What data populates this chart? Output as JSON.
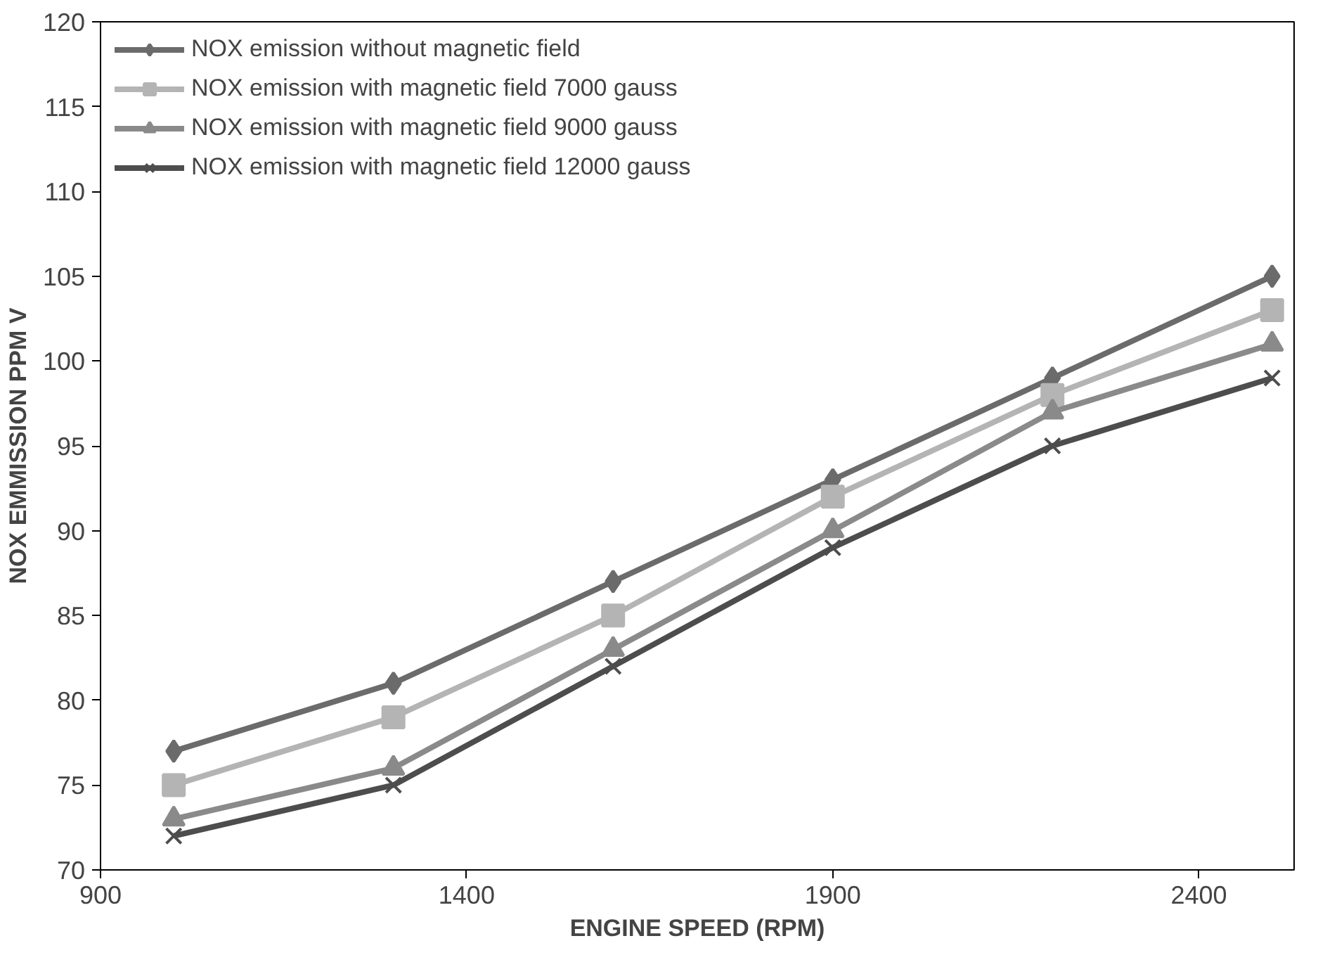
{
  "chart_data": {
    "type": "line",
    "xlabel": "ENGINE SPEED (RPM)",
    "ylabel": "NOX EMMISSION PPM V",
    "x": [
      1000,
      1300,
      1600,
      1900,
      2200,
      2500
    ],
    "xlim": [
      900,
      2530
    ],
    "xticks": [
      900,
      1400,
      1900,
      2400
    ],
    "ylim": [
      70,
      120
    ],
    "yticks": [
      70,
      75,
      80,
      85,
      90,
      95,
      100,
      105,
      110,
      115,
      120
    ],
    "grid": false,
    "legend": "top left",
    "line_style": "solid",
    "series": [
      {
        "name": "NOX emission without magnetic field",
        "color": "#6b6b6b",
        "marker": "diamond",
        "values": [
          77,
          81,
          87,
          93,
          99,
          105
        ]
      },
      {
        "name": "NOX emission with magnetic field 7000 gauss",
        "color": "#b4b4b4",
        "marker": "square",
        "values": [
          75,
          79,
          85,
          92,
          98,
          103
        ]
      },
      {
        "name": "NOX emission with magnetic field 9000 gauss",
        "color": "#8a8a8a",
        "marker": "triangle",
        "values": [
          73,
          76,
          83,
          90,
          97,
          101
        ]
      },
      {
        "name": "NOX emission with magnetic field 12000 gauss",
        "color": "#4d4d4d",
        "marker": "cross",
        "values": [
          72,
          75,
          82,
          89,
          95,
          99
        ]
      }
    ]
  }
}
